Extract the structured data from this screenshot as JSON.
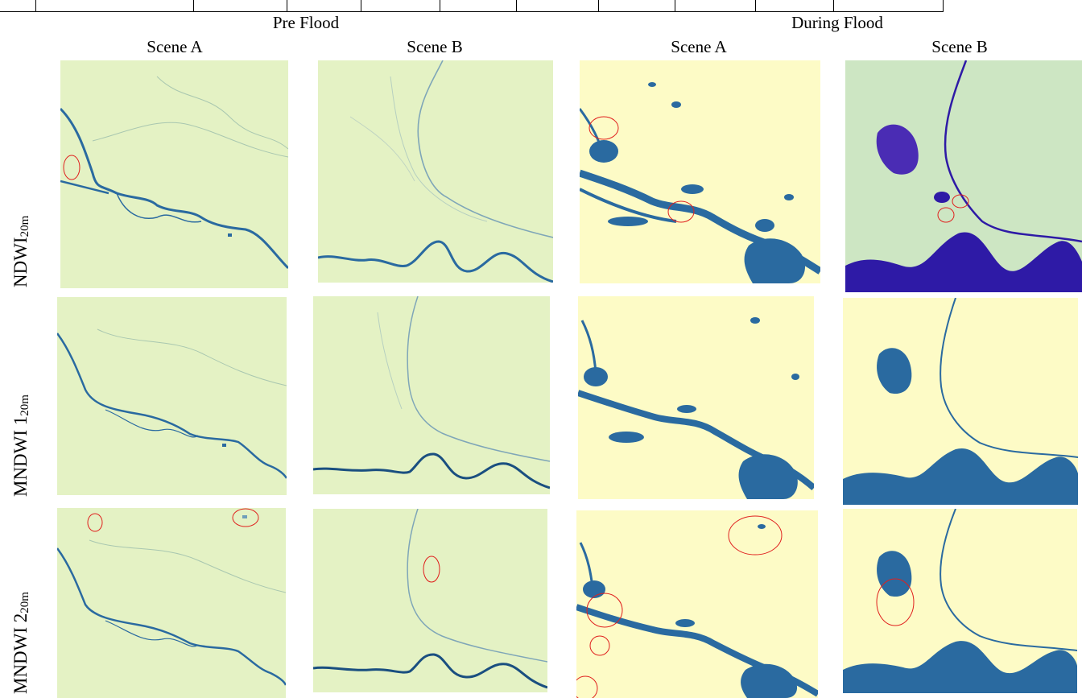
{
  "figure": {
    "column_groups": [
      {
        "id": "pre",
        "label": "Pre Flood"
      },
      {
        "id": "during",
        "label": "During Flood"
      }
    ],
    "scene_labels": [
      "Scene A",
      "Scene B",
      "Scene A",
      "Scene B"
    ],
    "rows": [
      {
        "label": "NDWI",
        "subscript": "20m"
      },
      {
        "label": "MNDWI 1",
        "subscript": "20m"
      },
      {
        "label": "MNDWI 2",
        "subscript": "20m"
      }
    ],
    "colors": {
      "pre_background": "#e4f2c4",
      "during_background": "#fdfbc6",
      "during_ndwi_b_background": "#cde6c3",
      "water": "#2a6aa0",
      "water_ndwi_b": "#2e1aa6",
      "circle": "#e0201e"
    }
  }
}
